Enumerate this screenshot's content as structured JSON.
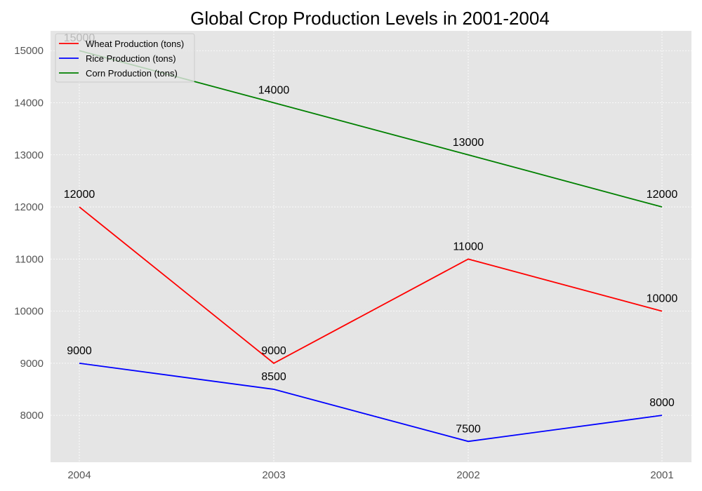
{
  "chart_data": {
    "type": "line",
    "title": "Global Crop Production Levels in 2001-2004",
    "xlabel": "",
    "ylabel": "",
    "categories": [
      "2004",
      "2003",
      "2002",
      "2001"
    ],
    "series": [
      {
        "name": "Wheat Production (tons)",
        "color": "#ff0000",
        "values": [
          12000,
          9000,
          11000,
          10000
        ]
      },
      {
        "name": "Rice Production (tons)",
        "color": "#0000ff",
        "values": [
          9000,
          8500,
          7500,
          8000
        ]
      },
      {
        "name": "Corn Production (tons)",
        "color": "#008000",
        "values": [
          15000,
          14000,
          13000,
          12000
        ]
      }
    ],
    "ylim": [
      7100,
      15380
    ],
    "yticks": [
      8000,
      9000,
      10000,
      11000,
      12000,
      13000,
      14000,
      15000
    ],
    "grid": true,
    "legend_position": "top-left",
    "background": "#e5e5e5"
  }
}
